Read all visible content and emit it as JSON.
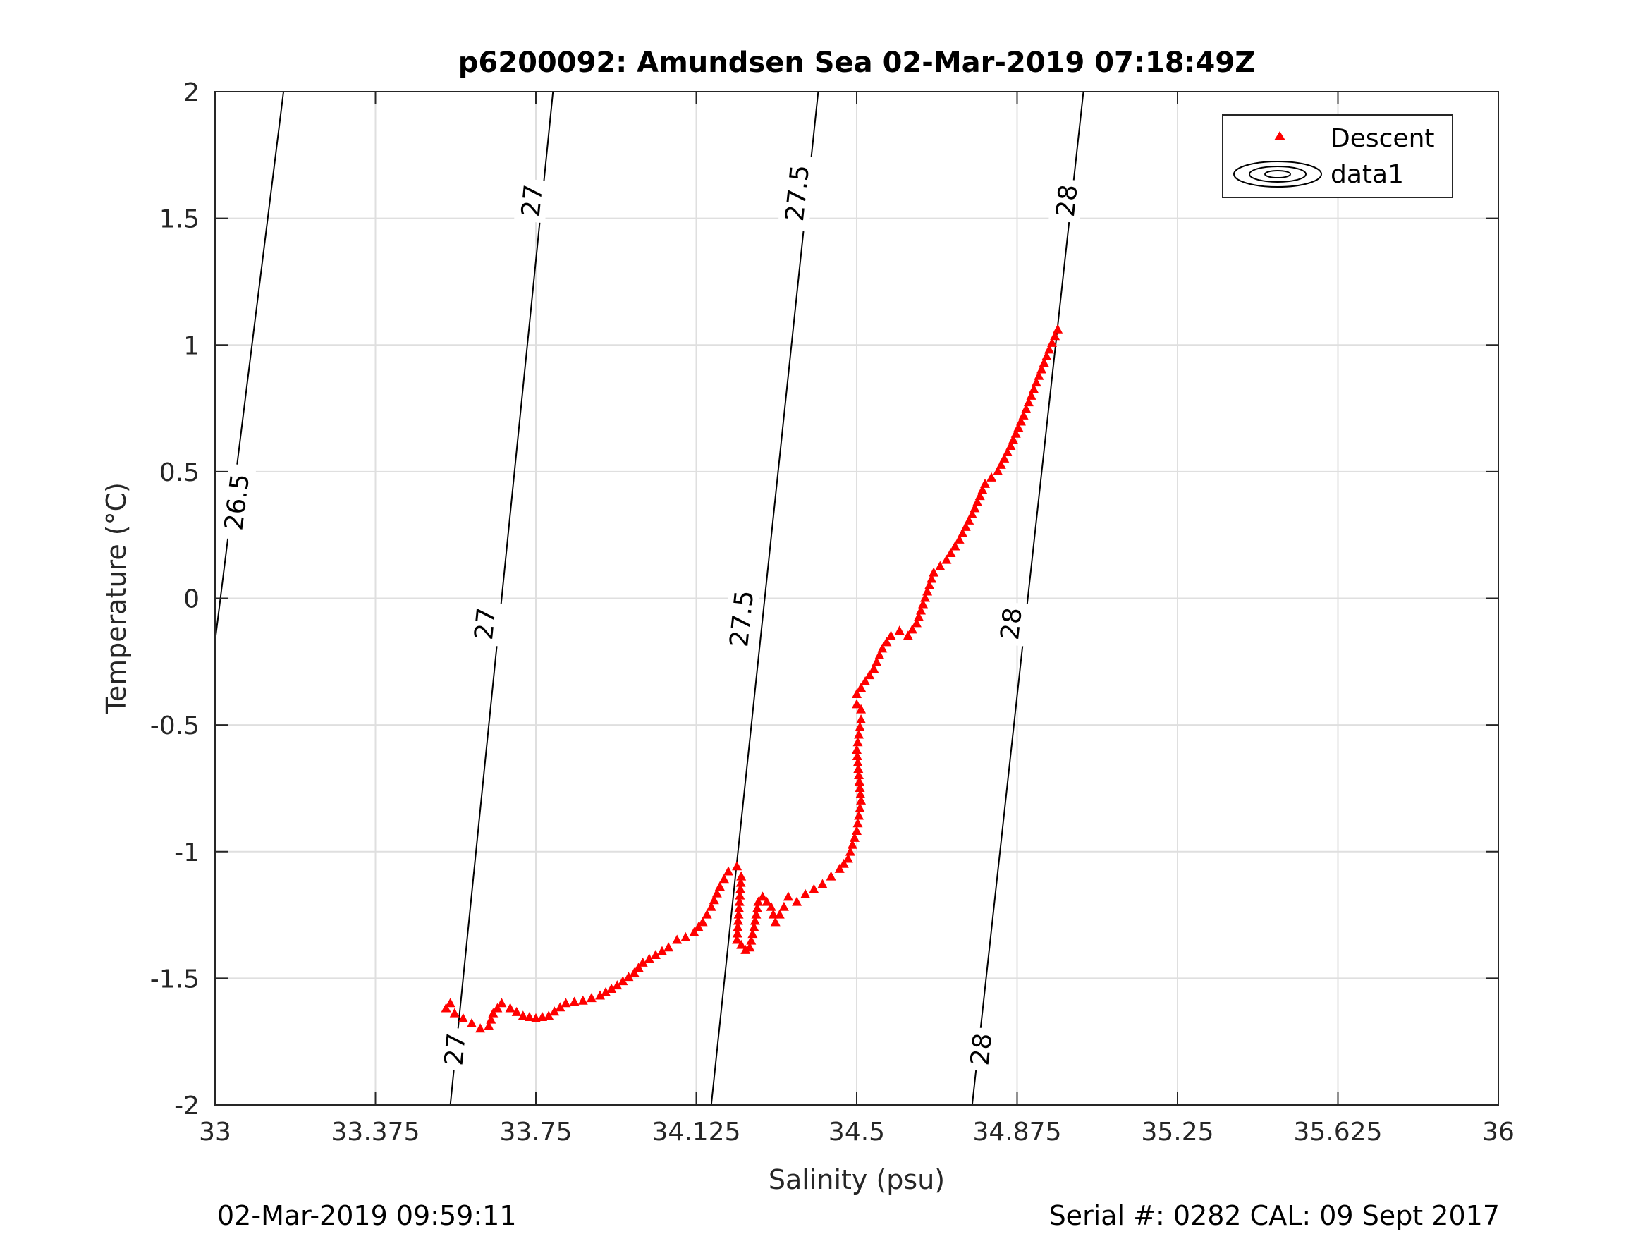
{
  "footer": {
    "left": "02-Mar-2019 09:59:11",
    "right": "Serial #: 0282  CAL: 09 Sept 2017"
  },
  "chart_data": {
    "type": "scatter",
    "title": "p6200092: Amundsen Sea 02-Mar-2019 07:18:49Z",
    "xlabel": "Salinity (psu)",
    "ylabel": "Temperature (°C)",
    "xlim": [
      33,
      36
    ],
    "ylim": [
      -2,
      2
    ],
    "xticks": [
      "33",
      "33.375",
      "33.75",
      "34.125",
      "34.5",
      "34.875",
      "35.25",
      "35.625",
      "36"
    ],
    "yticks": [
      "2",
      "1.5",
      "1",
      "0.5",
      "0",
      "-0.5",
      "-1",
      "-1.5",
      "-2"
    ],
    "grid": true,
    "legend": {
      "placement": "top-right",
      "entries": [
        "Descent",
        "data1"
      ]
    },
    "colors": {
      "descent": "#ff0000",
      "contour": "#000000",
      "grid": "#dfdfdf"
    },
    "series": [
      {
        "name": "Descent",
        "marker": "triangle",
        "x": [
          33.54,
          33.55,
          33.56,
          33.58,
          33.6,
          33.62,
          33.64,
          33.65,
          33.67,
          33.69,
          33.72,
          33.75,
          33.78,
          33.82,
          33.86,
          33.9,
          33.94,
          33.98,
          34.0,
          34.03,
          34.06,
          34.08,
          34.1,
          34.12,
          34.14,
          34.16,
          34.18,
          34.2,
          34.22,
          34.23,
          34.22,
          34.24,
          34.25,
          34.26,
          34.27,
          34.28,
          34.3,
          34.31,
          34.33,
          34.34,
          34.36,
          34.38,
          34.4,
          34.42,
          34.44,
          34.46,
          34.48,
          34.5,
          34.51,
          34.5,
          34.51,
          34.51,
          34.5,
          34.5,
          34.52,
          34.54,
          34.56,
          34.58,
          34.6,
          34.62,
          34.64,
          34.66,
          34.68,
          34.71,
          34.74,
          34.77,
          34.8,
          34.83,
          34.86,
          34.89,
          34.92,
          34.95,
          34.97
        ],
        "y": [
          -1.62,
          -1.6,
          -1.64,
          -1.66,
          -1.68,
          -1.7,
          -1.69,
          -1.64,
          -1.6,
          -1.62,
          -1.65,
          -1.66,
          -1.65,
          -1.6,
          -1.59,
          -1.57,
          -1.53,
          -1.48,
          -1.44,
          -1.41,
          -1.38,
          -1.35,
          -1.34,
          -1.32,
          -1.28,
          -1.22,
          -1.14,
          -1.08,
          -1.06,
          -1.1,
          -1.35,
          -1.39,
          -1.38,
          -1.3,
          -1.2,
          -1.18,
          -1.22,
          -1.28,
          -1.22,
          -1.18,
          -1.2,
          -1.17,
          -1.15,
          -1.13,
          -1.1,
          -1.07,
          -1.03,
          -0.92,
          -0.8,
          -0.6,
          -0.48,
          -0.44,
          -0.42,
          -0.38,
          -0.33,
          -0.28,
          -0.2,
          -0.15,
          -0.13,
          -0.15,
          -0.1,
          0.0,
          0.1,
          0.15,
          0.23,
          0.33,
          0.45,
          0.5,
          0.6,
          0.72,
          0.85,
          0.98,
          1.06
        ]
      }
    ],
    "contours": {
      "name": "data1",
      "levels": [
        26.5,
        27,
        27.5,
        28
      ],
      "lines": [
        {
          "level": 26.5,
          "x": [
            33.0,
            33.16
          ],
          "y": [
            -0.17,
            2.0
          ]
        },
        {
          "level": 27,
          "x": [
            33.55,
            33.79
          ],
          "y": [
            -2.0,
            2.0
          ]
        },
        {
          "level": 27.5,
          "x": [
            34.16,
            34.41
          ],
          "y": [
            -2.0,
            2.0
          ]
        },
        {
          "level": 28,
          "x": [
            34.77,
            35.03
          ],
          "y": [
            -2.0,
            2.0
          ]
        }
      ],
      "labels": [
        {
          "text": "26.5",
          "x": 33.05,
          "y": 0.38
        },
        {
          "text": "27",
          "x": 33.74,
          "y": 1.57
        },
        {
          "text": "27",
          "x": 33.63,
          "y": -0.1
        },
        {
          "text": "27",
          "x": 33.56,
          "y": -1.78
        },
        {
          "text": "27.5",
          "x": 34.36,
          "y": 1.6
        },
        {
          "text": "27.5",
          "x": 34.23,
          "y": -0.08
        },
        {
          "text": "28",
          "x": 34.99,
          "y": 1.57
        },
        {
          "text": "28",
          "x": 34.86,
          "y": -0.1
        },
        {
          "text": "28",
          "x": 34.79,
          "y": -1.78
        }
      ]
    }
  }
}
